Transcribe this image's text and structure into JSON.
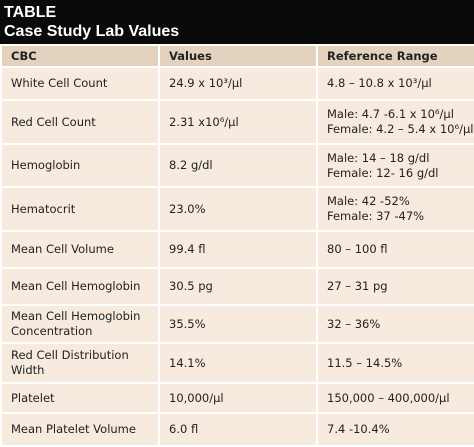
{
  "header": {
    "label": "TABLE",
    "title": "Case Study Lab Values"
  },
  "table": {
    "columns": [
      "CBC",
      "Values",
      "Reference Range"
    ],
    "rows": [
      [
        "White Cell Count",
        "24.9 x 10³/µl",
        "4.8 – 10.8 x 10³/µl"
      ],
      [
        "Red Cell Count",
        "2.31 x10⁶/µl",
        [
          "Male: 4.7 -6.1 x 10⁶/µl",
          "Female: 4.2 – 5.4 x 10⁶/µl"
        ]
      ],
      [
        "Hemoglobin",
        "8.2 g/dl",
        [
          "Male: 14 – 18 g/dl",
          "Female: 12- 16 g/dl"
        ]
      ],
      [
        "Hematocrit",
        "23.0%",
        [
          "Male: 42 -52%",
          "Female: 37 -47%"
        ]
      ],
      [
        "Mean Cell Volume",
        "99.4 fl",
        "80 – 100 fl"
      ],
      [
        "Mean Cell Hemoglobin",
        "30.5 pg",
        "27 – 31 pg"
      ],
      [
        "Mean Cell Hemoglobin Concentration",
        "35.5%",
        "32 – 36%"
      ],
      [
        "Red Cell Distribution Width",
        "14.1%",
        "11.5 – 14.5%"
      ],
      [
        "Platelet",
        "10,000/µl",
        "150,000 – 400,000/µl"
      ],
      [
        "Mean Platelet Volume",
        "6.0 fl",
        "7.4 -10.4%"
      ]
    ]
  }
}
